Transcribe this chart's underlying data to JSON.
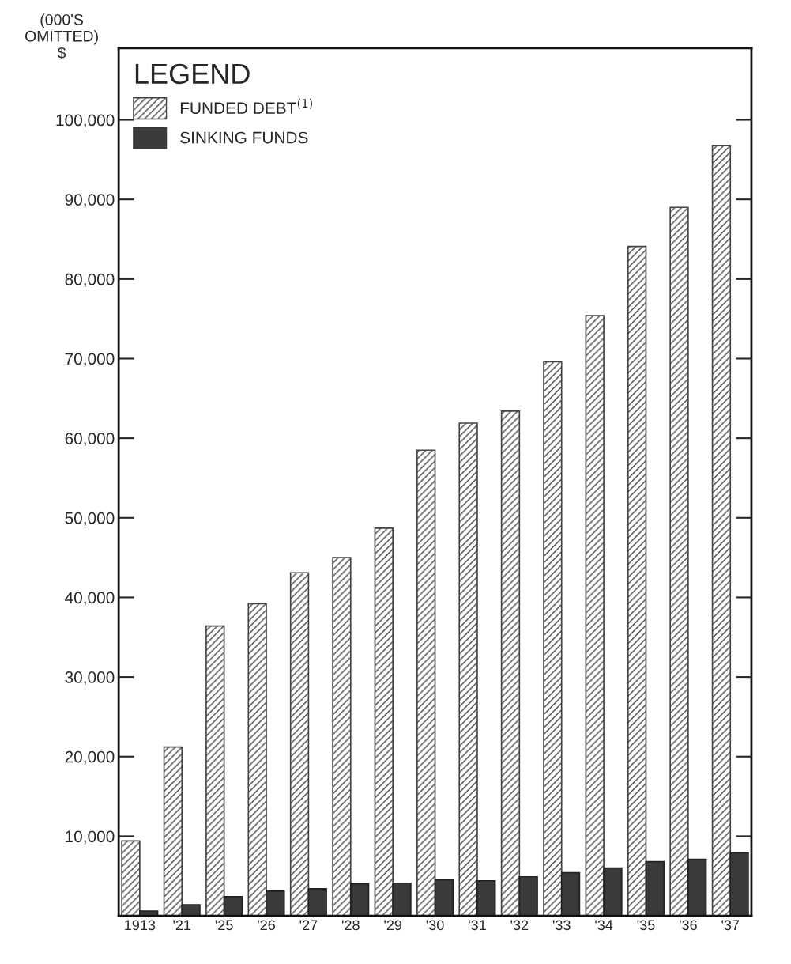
{
  "chart_data": {
    "type": "bar",
    "ylabel": "(000'S\nOMITTED)\n$",
    "legend_title": "LEGEND",
    "categories": [
      "1913",
      "'21",
      "'25",
      "'26",
      "'27",
      "'28",
      "'29",
      "'30",
      "'31",
      "'32",
      "'33",
      "'34",
      "'35",
      "'36",
      "'37"
    ],
    "series": [
      {
        "name": "FUNDED DEBT$^{(1)}$",
        "color": "#444444",
        "values": [
          9400,
          21200,
          36400,
          39200,
          43100,
          45000,
          48700,
          58500,
          61900,
          63400,
          69600,
          75400,
          84100,
          89000,
          96800
        ]
      },
      {
        "name": "SINKING FUNDS",
        "color": "#3a3a3a",
        "values": [
          600,
          1400,
          2400,
          3100,
          3400,
          4000,
          4100,
          4500,
          4400,
          4900,
          5400,
          6000,
          6800,
          7100,
          7900
        ]
      }
    ],
    "ylim": [
      0,
      109000
    ],
    "yticks": [
      {
        "value": 10000,
        "label": "10,000"
      },
      {
        "value": 20000,
        "label": "20,000"
      },
      {
        "value": 30000,
        "label": "30,000"
      },
      {
        "value": 40000,
        "label": "40,000"
      },
      {
        "value": 50000,
        "label": "50,000"
      },
      {
        "value": 60000,
        "label": "60,000"
      },
      {
        "value": 70000,
        "label": "70,000"
      },
      {
        "value": 80000,
        "label": "80,000"
      },
      {
        "value": 90000,
        "label": "90,000"
      },
      {
        "value": 100000,
        "label": "100,000"
      }
    ],
    "grid": false,
    "legend": "top left"
  }
}
